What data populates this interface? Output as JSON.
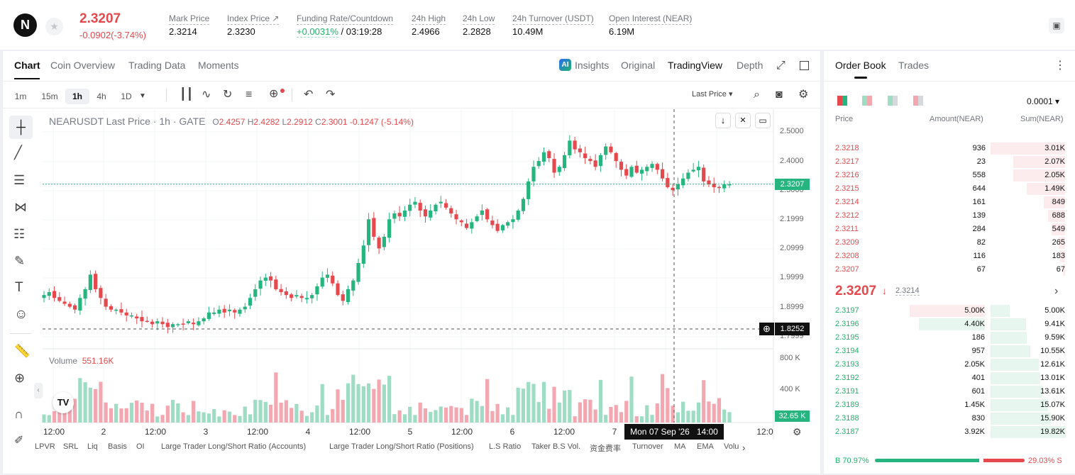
{
  "header": {
    "logo_letter": "N",
    "last_price": "2.3207",
    "change": "-0.0902(-3.74%)",
    "stats": [
      {
        "label": "Mark Price",
        "value": "2.3214"
      },
      {
        "label": "Index Price ↗",
        "value": "2.3230"
      },
      {
        "label": "Funding Rate/Countdown",
        "value_green": "+0.0031%",
        "value": "/ 03:19:28"
      },
      {
        "label": "24h High",
        "value": "2.4966"
      },
      {
        "label": "24h Low",
        "value": "2.2828"
      },
      {
        "label": "24h Turnover (USDT)",
        "value": "10.49M"
      },
      {
        "label": "Open Interest (NEAR)",
        "value": "6.19M"
      }
    ]
  },
  "chart_tabs": [
    "Chart",
    "Coin Overview",
    "Trading Data",
    "Moments"
  ],
  "view_tabs": [
    "Insights",
    "Original",
    "TradingView",
    "Depth"
  ],
  "timeframes": [
    "1m",
    "15m",
    "1h",
    "4h",
    "1D"
  ],
  "price_type": "Last Price",
  "legend": {
    "symbol": "NEARUSDT Last Price · 1h · GATE",
    "o_label": "O",
    "o": "2.4257",
    "h_label": "H",
    "h": "2.4282",
    "l_label": "L",
    "l": "2.2912",
    "c_label": "C",
    "c": "2.3001",
    "chg": "-0.1247 (-5.14%)"
  },
  "volume": {
    "label": "Volume",
    "value": "551.16K"
  },
  "price_axis": [
    "2.5000",
    "2.4000",
    "2.3000",
    "2.1999",
    "2.0999",
    "1.9999",
    "1.8999",
    "1.7999"
  ],
  "last_price_tag": "2.3207",
  "cursor_price_tag": "1.8252",
  "volume_axis": [
    "800 K",
    "400 K"
  ],
  "volume_tag": "32.65 K",
  "time_axis": [
    "12:00",
    "2",
    "12:00",
    "3",
    "12:00",
    "4",
    "12:00",
    "5",
    "12:00",
    "6",
    "12:00",
    "7",
    "12:0"
  ],
  "cursor_time": "Mon 07 Sep '26   14:00",
  "indicators": [
    "LPVR",
    "SRL",
    "Liq",
    "Basis",
    "OI",
    "Large Trader Long/Short Ratio (Accounts)",
    "Large Trader Long/Short Ratio (Positions)",
    "L.S Ratio",
    "Taker B.S Vol.",
    "资金费率",
    "Turnover",
    "MA",
    "EMA",
    "Volu"
  ],
  "orderbook": {
    "tabs": [
      "Order Book",
      "Trades"
    ],
    "precision": "0.0001",
    "cols": [
      "Price",
      "Amount(NEAR)",
      "Sum(NEAR)"
    ],
    "asks": [
      {
        "price": "2.3218",
        "amount": "936",
        "sum": "3.01K",
        "depth": 0.39
      },
      {
        "price": "2.3217",
        "amount": "23",
        "sum": "2.07K",
        "depth": 0.27
      },
      {
        "price": "2.3216",
        "amount": "558",
        "sum": "2.05K",
        "depth": 0.27
      },
      {
        "price": "2.3215",
        "amount": "644",
        "sum": "1.49K",
        "depth": 0.2
      },
      {
        "price": "2.3214",
        "amount": "161",
        "sum": "849",
        "depth": 0.11
      },
      {
        "price": "2.3212",
        "amount": "139",
        "sum": "688",
        "depth": 0.09
      },
      {
        "price": "2.3211",
        "amount": "284",
        "sum": "549",
        "depth": 0.07
      },
      {
        "price": "2.3209",
        "amount": "82",
        "sum": "265",
        "depth": 0.035
      },
      {
        "price": "2.3208",
        "amount": "116",
        "sum": "183",
        "depth": 0.025
      },
      {
        "price": "2.3207",
        "amount": "67",
        "sum": "67",
        "depth": 0.01
      }
    ],
    "mid_price": "2.3207",
    "mid_mark": "2.3214",
    "bids": [
      {
        "price": "2.3197",
        "amount": "5.00K",
        "sum": "5.00K",
        "depth": 0.25,
        "amt_depth": 1
      },
      {
        "price": "2.3196",
        "amount": "4.40K",
        "sum": "9.41K",
        "depth": 0.47,
        "amt_depth": 0.88
      },
      {
        "price": "2.3195",
        "amount": "186",
        "sum": "9.59K",
        "depth": 0.48,
        "amt_depth": 0
      },
      {
        "price": "2.3194",
        "amount": "957",
        "sum": "10.55K",
        "depth": 0.53,
        "amt_depth": 0
      },
      {
        "price": "2.3193",
        "amount": "2.05K",
        "sum": "12.61K",
        "depth": 0.64,
        "amt_depth": 0
      },
      {
        "price": "2.3192",
        "amount": "401",
        "sum": "13.01K",
        "depth": 0.66,
        "amt_depth": 0
      },
      {
        "price": "2.3191",
        "amount": "601",
        "sum": "13.61K",
        "depth": 0.69,
        "amt_depth": 0
      },
      {
        "price": "2.3189",
        "amount": "1.45K",
        "sum": "15.07K",
        "depth": 0.76,
        "amt_depth": 0
      },
      {
        "price": "2.3188",
        "amount": "830",
        "sum": "15.90K",
        "depth": 0.8,
        "amt_depth": 0
      },
      {
        "price": "2.3187",
        "amount": "3.92K",
        "sum": "19.82K",
        "depth": 1.0,
        "amt_depth": 0
      }
    ],
    "ratio": {
      "buy_label": "B",
      "buy": "70.97%",
      "sell": "29.03%",
      "sell_label": "S",
      "buy_frac": 0.7097
    }
  },
  "colors": {
    "up": "#26b47f",
    "down": "#e5484d",
    "up_vol": "#9fdcc4",
    "down_vol": "#f3a7b0",
    "accent": "#20b26c"
  },
  "chart_data": {
    "type": "candlestick",
    "symbol": "NEARUSDT",
    "interval": "1h",
    "ylim": [
      1.75,
      2.55
    ],
    "close_path": [
      1.94,
      1.95,
      1.93,
      1.92,
      1.91,
      1.9,
      1.89,
      1.93,
      1.96,
      2.01,
      1.96,
      1.93,
      1.9,
      1.89,
      1.89,
      1.88,
      1.87,
      1.87,
      1.86,
      1.85,
      1.85,
      1.84,
      1.85,
      1.84,
      1.83,
      1.84,
      1.84,
      1.84,
      1.85,
      1.84,
      1.85,
      1.86,
      1.88,
      1.88,
      1.89,
      1.88,
      1.89,
      1.88,
      1.89,
      1.9,
      1.93,
      1.96,
      1.99,
      2.0,
      1.99,
      1.96,
      1.95,
      1.94,
      1.93,
      1.94,
      1.93,
      1.93,
      1.94,
      1.97,
      2.0,
      2.01,
      1.98,
      1.94,
      1.92,
      1.96,
      1.99,
      2.05,
      2.11,
      2.2,
      2.14,
      2.1,
      2.14,
      2.2,
      2.22,
      2.21,
      2.23,
      2.25,
      2.26,
      2.23,
      2.21,
      2.23,
      2.25,
      2.26,
      2.24,
      2.22,
      2.2,
      2.19,
      2.17,
      2.19,
      2.21,
      2.23,
      2.2,
      2.18,
      2.16,
      2.18,
      2.19,
      2.2,
      2.23,
      2.27,
      2.33,
      2.38,
      2.4,
      2.43,
      2.41,
      2.36,
      2.38,
      2.42,
      2.47,
      2.44,
      2.43,
      2.41,
      2.4,
      2.38,
      2.42,
      2.45,
      2.43,
      2.4,
      2.37,
      2.35,
      2.38,
      2.36,
      2.37,
      2.38,
      2.39,
      2.37,
      2.34,
      2.31,
      2.3,
      2.32,
      2.34,
      2.36,
      2.37,
      2.38,
      2.33,
      2.32,
      2.31,
      2.31,
      2.32,
      2.32
    ]
  }
}
